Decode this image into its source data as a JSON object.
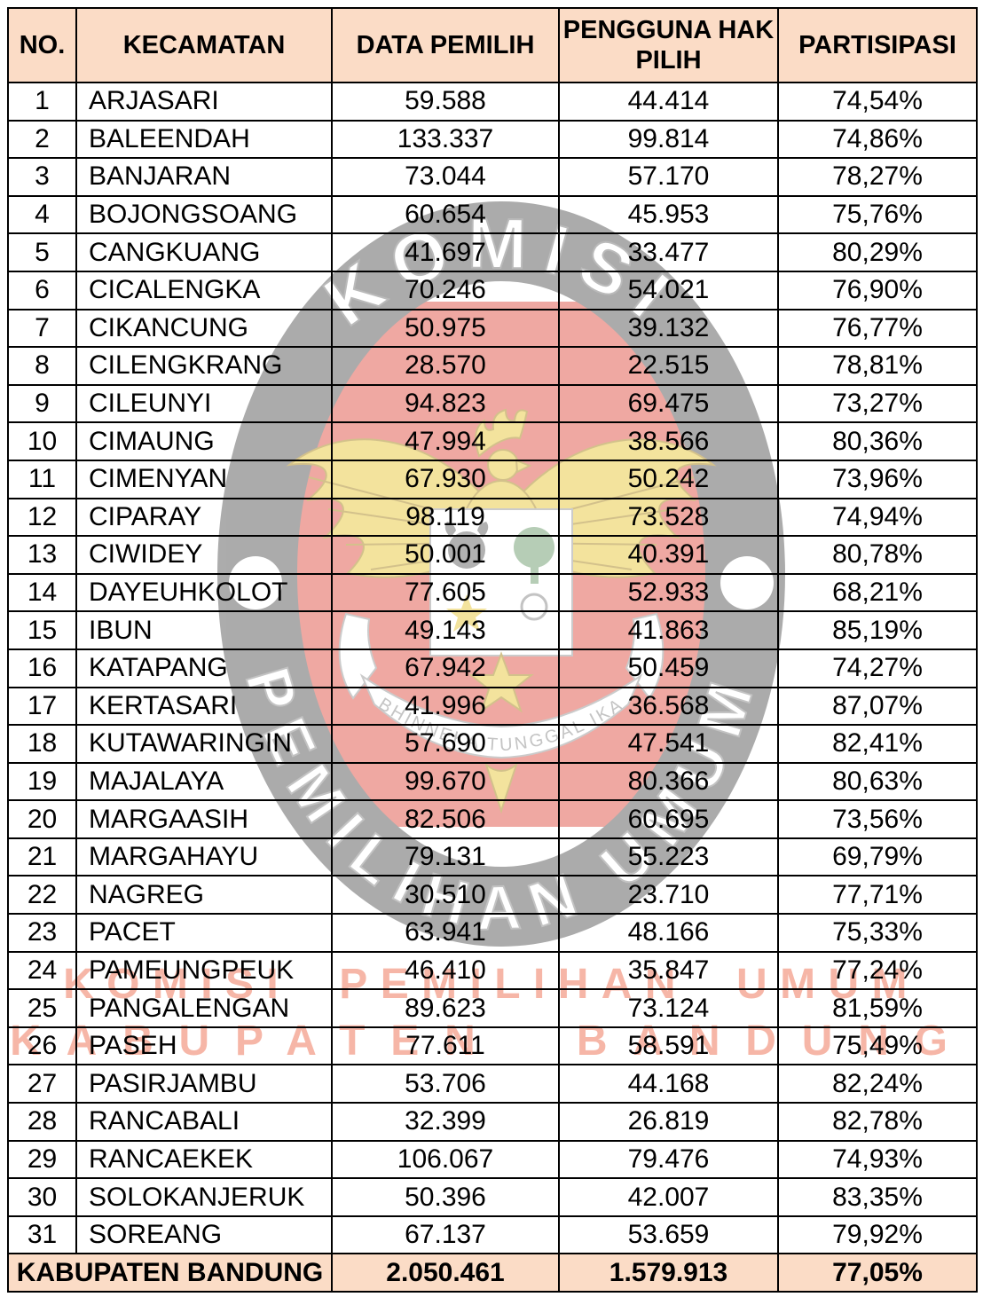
{
  "table": {
    "columns": [
      "NO.",
      "KECAMATAN",
      "DATA PEMILIH",
      "PENGGUNA HAK PILIH",
      "PARTISIPASI"
    ],
    "rows": [
      [
        "1",
        "ARJASARI",
        "59.588",
        "44.414",
        "74,54%"
      ],
      [
        "2",
        "BALEENDAH",
        "133.337",
        "99.814",
        "74,86%"
      ],
      [
        "3",
        "BANJARAN",
        "73.044",
        "57.170",
        "78,27%"
      ],
      [
        "4",
        "BOJONGSOANG",
        "60.654",
        "45.953",
        "75,76%"
      ],
      [
        "5",
        "CANGKUANG",
        "41.697",
        "33.477",
        "80,29%"
      ],
      [
        "6",
        "CICALENGKA",
        "70.246",
        "54.021",
        "76,90%"
      ],
      [
        "7",
        "CIKANCUNG",
        "50.975",
        "39.132",
        "76,77%"
      ],
      [
        "8",
        "CILENGKRANG",
        "28.570",
        "22.515",
        "78,81%"
      ],
      [
        "9",
        "CILEUNYI",
        "94.823",
        "69.475",
        "73,27%"
      ],
      [
        "10",
        "CIMAUNG",
        "47.994",
        "38.566",
        "80,36%"
      ],
      [
        "11",
        "CIMENYAN",
        "67.930",
        "50.242",
        "73,96%"
      ],
      [
        "12",
        "CIPARAY",
        "98.119",
        "73.528",
        "74,94%"
      ],
      [
        "13",
        "CIWIDEY",
        "50.001",
        "40.391",
        "80,78%"
      ],
      [
        "14",
        "DAYEUHKOLOT",
        "77.605",
        "52.933",
        "68,21%"
      ],
      [
        "15",
        "IBUN",
        "49.143",
        "41.863",
        "85,19%"
      ],
      [
        "16",
        "KATAPANG",
        "67.942",
        "50.459",
        "74,27%"
      ],
      [
        "17",
        "KERTASARI",
        "41.996",
        "36.568",
        "87,07%"
      ],
      [
        "18",
        "KUTAWARINGIN",
        "57.690",
        "47.541",
        "82,41%"
      ],
      [
        "19",
        "MAJALAYA",
        "99.670",
        "80.366",
        "80,63%"
      ],
      [
        "20",
        "MARGAASIH",
        "82.506",
        "60.695",
        "73,56%"
      ],
      [
        "21",
        "MARGAHAYU",
        "79.131",
        "55.223",
        "69,79%"
      ],
      [
        "22",
        "NAGREG",
        "30.510",
        "23.710",
        "77,71%"
      ],
      [
        "23",
        "PACET",
        "63.941",
        "48.166",
        "75,33%"
      ],
      [
        "24",
        "PAMEUNGPEUK",
        "46.410",
        "35.847",
        "77,24%"
      ],
      [
        "25",
        "PANGALENGAN",
        "89.623",
        "73.124",
        "81,59%"
      ],
      [
        "26",
        "PASEH",
        "77.611",
        "58.591",
        "75,49%"
      ],
      [
        "27",
        "PASIRJAMBU",
        "53.706",
        "44.168",
        "82,24%"
      ],
      [
        "28",
        "RANCABALI",
        "32.399",
        "26.819",
        "82,78%"
      ],
      [
        "29",
        "RANCAEKEK",
        "106.067",
        "79.476",
        "74,93%"
      ],
      [
        "30",
        "SOLOKANJERUK",
        "50.396",
        "42.007",
        "83,35%"
      ],
      [
        "31",
        "SOREANG",
        "67.137",
        "53.659",
        "79,92%"
      ]
    ],
    "total": [
      "KABUPATEN BANDUNG",
      "2.050.461",
      "1.579.913",
      "77,05%"
    ]
  },
  "watermark": {
    "logo_top_text": "KOMISI",
    "logo_bottom_text": "PEMILIHAN UMUM",
    "banner_text": "BHINNEKA TUNGGAL IKA",
    "red_line1": "KOMISI PEMILIHAN UMUM",
    "red_line2": "KABUPATEN BANDUNG"
  },
  "colors": {
    "header_bg": "#fbdcc6",
    "border": "#000000",
    "watermark_red_text": "#ea522e",
    "logo_ring_gray": "#595959",
    "logo_shield_red": "#e05347",
    "logo_garuda_yellow": "#e8c93e"
  }
}
